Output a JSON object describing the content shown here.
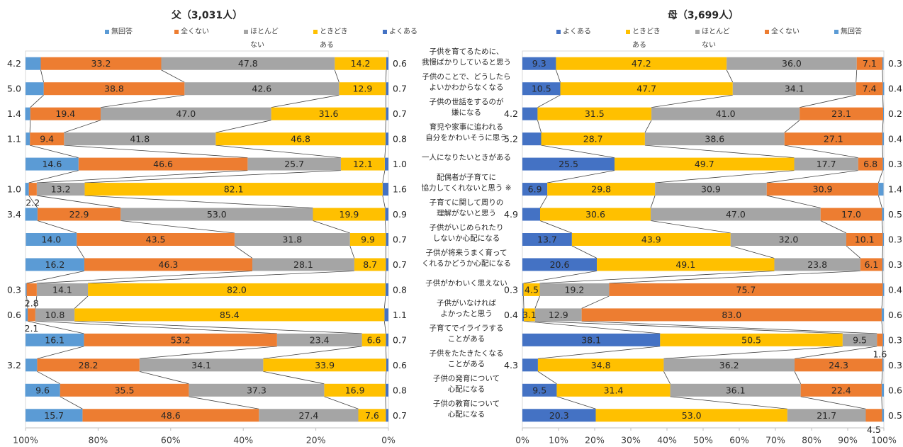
{
  "chart_data": [
    {
      "type": "bar",
      "orientation": "horizontal-stacked-percent",
      "title": "父（3,031人）",
      "x_direction": "reversed",
      "xlim": [
        0,
        100
      ],
      "x_ticks": [
        "100%",
        "80%",
        "60%",
        "40%",
        "20%",
        "0%"
      ],
      "legend": [
        "無回答",
        "全くない",
        "ほとんど\nない",
        "ときどき\nある",
        "よくある"
      ],
      "series": [
        {
          "name": "よくある",
          "values": [
            0.6,
            0.7,
            0.7,
            0.8,
            1.0,
            1.6,
            0.9,
            0.7,
            0.7,
            0.8,
            1.1,
            0.7,
            0.6,
            0.8,
            0.7
          ]
        },
        {
          "name": "ときどきある",
          "values": [
            14.2,
            12.9,
            31.6,
            46.8,
            12.1,
            82.1,
            19.9,
            9.9,
            8.7,
            82.0,
            85.4,
            6.6,
            33.9,
            16.9,
            7.6
          ]
        },
        {
          "name": "ほとんどない",
          "values": [
            47.8,
            42.6,
            47.0,
            41.8,
            25.7,
            13.2,
            53.0,
            31.8,
            28.1,
            14.1,
            10.8,
            23.4,
            34.1,
            37.3,
            27.4
          ]
        },
        {
          "name": "全くない",
          "values": [
            33.2,
            38.8,
            19.4,
            9.4,
            46.6,
            2.2,
            22.9,
            43.5,
            46.3,
            2.8,
            2.1,
            53.2,
            28.2,
            35.5,
            48.6
          ]
        },
        {
          "name": "無回答",
          "values": [
            4.2,
            5.0,
            1.4,
            1.1,
            14.6,
            1.0,
            3.4,
            14.0,
            16.2,
            0.3,
            0.6,
            16.1,
            3.2,
            9.6,
            15.7
          ]
        }
      ]
    },
    {
      "type": "bar",
      "orientation": "horizontal-stacked-percent",
      "title": "母（3,699人）",
      "xlim": [
        0,
        100
      ],
      "x_ticks": [
        "0%",
        "10%",
        "20%",
        "30%",
        "40%",
        "50%",
        "60%",
        "70%",
        "80%",
        "90%",
        "100%"
      ],
      "legend": [
        "よくある",
        "ときどき\nある",
        "ほとんど\nない",
        "全くない",
        "無回答"
      ],
      "series": [
        {
          "name": "よくある",
          "values": [
            9.3,
            10.5,
            4.2,
            5.2,
            25.5,
            6.9,
            4.9,
            13.7,
            20.6,
            0.3,
            0.4,
            38.1,
            4.3,
            9.5,
            20.3
          ]
        },
        {
          "name": "ときどきある",
          "values": [
            47.2,
            47.7,
            31.5,
            28.7,
            49.7,
            29.8,
            30.6,
            43.9,
            49.1,
            4.5,
            3.1,
            50.5,
            34.8,
            31.4,
            53.0
          ]
        },
        {
          "name": "ほとんどない",
          "values": [
            36.0,
            34.1,
            41.0,
            38.6,
            17.7,
            30.9,
            47.0,
            32.0,
            23.8,
            19.2,
            12.9,
            9.5,
            36.2,
            36.1,
            21.7
          ]
        },
        {
          "name": "全くない",
          "values": [
            7.1,
            7.4,
            23.1,
            27.1,
            6.8,
            30.9,
            17.0,
            10.1,
            6.1,
            75.7,
            83.0,
            1.6,
            24.3,
            22.4,
            4.5
          ]
        },
        {
          "name": "無回答",
          "values": [
            0.3,
            0.4,
            0.2,
            0.4,
            0.3,
            1.4,
            0.5,
            0.3,
            0.3,
            0.4,
            0.6,
            0.3,
            0.3,
            0.6,
            0.5
          ]
        }
      ]
    }
  ],
  "categories": [
    [
      "子供を育てるために、",
      "我慢ばかりしていると思う"
    ],
    [
      "子供のことで、どうしたら",
      "よいかわからなくなる"
    ],
    [
      "子供の世話をするのが",
      "嫌になる"
    ],
    [
      "育児や家事に追われる",
      "自分をかわいそうに思う"
    ],
    [
      "一人になりたいときがある"
    ],
    [
      "配偶者が子育てに",
      "協力してくれないと思う ※"
    ],
    [
      "子育てに関して周りの",
      "理解がないと思う"
    ],
    [
      "子供がいじめられたり",
      "しないか心配になる"
    ],
    [
      "子供が将来うまく育って",
      "くれるかどうか心配になる"
    ],
    [
      "子供がかわいく思えない"
    ],
    [
      "子供がいなければ",
      "よかったと思う"
    ],
    [
      "子育てでイライラする",
      "ことがある"
    ],
    [
      "子供をたたきたくなる",
      "ことがある"
    ],
    [
      "子供の発育について",
      "心配になる"
    ],
    [
      "子供の教育について",
      "心配になる"
    ]
  ],
  "colors": {
    "よくある": "#4472c4",
    "ときどきある": "#ffc000",
    "ほとんどない": "#a5a5a5",
    "全くない": "#ed7d31",
    "無回答": "#5b9bd5"
  }
}
